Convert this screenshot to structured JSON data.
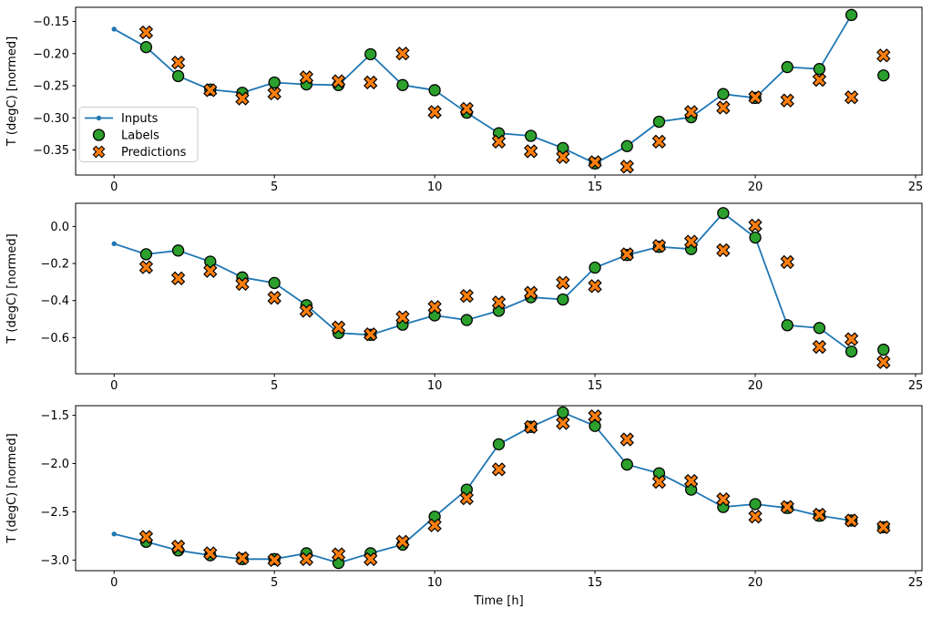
{
  "figure": {
    "background": "#ffffff"
  },
  "colors": {
    "inputs": "#1f77b4",
    "labels": "#2ca02c",
    "predictions": "#ff7f0e",
    "marker_edge": "#000000",
    "axis": "#000000",
    "legend_border": "#cccccc",
    "legend_fill": "#ffffff"
  },
  "legend": {
    "entries": [
      {
        "label": "Inputs",
        "marker": "line-dot"
      },
      {
        "label": "Labels",
        "marker": "circle"
      },
      {
        "label": "Predictions",
        "marker": "x"
      }
    ]
  },
  "chart_data": [
    {
      "type": "line",
      "ylabel": "T (degC) [normed]",
      "xlabel": "",
      "xlim": [
        -1.2,
        25.2
      ],
      "ylim": [
        -0.389,
        -0.128
      ],
      "xticks": [
        0,
        5,
        10,
        15,
        20,
        25
      ],
      "xtick_labels": [
        "0",
        "5",
        "10",
        "15",
        "20",
        "25"
      ],
      "ytick_values": [
        -0.15,
        -0.2,
        -0.25,
        -0.3,
        -0.35
      ],
      "ytick_labels": [
        "−0.15",
        "−0.20",
        "−0.25",
        "−0.30",
        "−0.35"
      ],
      "grid": false,
      "series": [
        {
          "name": "Inputs",
          "kind": "line",
          "x": [
            0,
            1,
            2,
            3,
            4,
            5,
            6,
            7,
            8,
            9,
            10,
            11,
            12,
            13,
            14,
            15,
            16,
            17,
            18,
            19,
            20,
            21,
            22,
            23
          ],
          "y": [
            -0.162,
            -0.19,
            -0.235,
            -0.256,
            -0.261,
            -0.245,
            -0.248,
            -0.249,
            -0.201,
            -0.249,
            -0.257,
            -0.292,
            -0.324,
            -0.328,
            -0.347,
            -0.371,
            -0.344,
            -0.306,
            -0.299,
            -0.263,
            -0.269,
            -0.221,
            -0.224,
            -0.14
          ]
        },
        {
          "name": "Labels",
          "kind": "circle",
          "x": [
            1,
            2,
            3,
            4,
            5,
            6,
            7,
            8,
            9,
            10,
            11,
            12,
            13,
            14,
            15,
            16,
            17,
            18,
            19,
            20,
            21,
            22,
            23,
            24
          ],
          "y": [
            -0.19,
            -0.235,
            -0.256,
            -0.261,
            -0.245,
            -0.248,
            -0.249,
            -0.201,
            -0.249,
            -0.257,
            -0.292,
            -0.324,
            -0.328,
            -0.347,
            -0.371,
            -0.344,
            -0.306,
            -0.299,
            -0.263,
            -0.269,
            -0.221,
            -0.224,
            -0.14,
            -0.234
          ]
        },
        {
          "name": "Predictions",
          "kind": "x",
          "x": [
            1,
            2,
            3,
            4,
            5,
            6,
            7,
            8,
            9,
            10,
            11,
            12,
            13,
            14,
            15,
            16,
            17,
            18,
            19,
            20,
            21,
            22,
            23,
            24
          ],
          "y": [
            -0.167,
            -0.214,
            -0.257,
            -0.27,
            -0.262,
            -0.237,
            -0.243,
            -0.245,
            -0.2,
            -0.291,
            -0.286,
            -0.337,
            -0.352,
            -0.361,
            -0.369,
            -0.376,
            -0.337,
            -0.291,
            -0.284,
            -0.268,
            -0.273,
            -0.241,
            -0.268,
            -0.203
          ]
        }
      ]
    },
    {
      "type": "line",
      "ylabel": "T (degC) [normed]",
      "xlabel": "",
      "xlim": [
        -1.2,
        25.2
      ],
      "ylim": [
        -0.795,
        0.125
      ],
      "xticks": [
        0,
        5,
        10,
        15,
        20,
        25
      ],
      "xtick_labels": [
        "0",
        "5",
        "10",
        "15",
        "20",
        "25"
      ],
      "ytick_values": [
        0.0,
        -0.2,
        -0.4,
        -0.6
      ],
      "ytick_labels": [
        "0.0",
        "−0.2",
        "−0.4",
        "−0.6"
      ],
      "grid": false,
      "series": [
        {
          "name": "Inputs",
          "kind": "line",
          "x": [
            0,
            1,
            2,
            3,
            4,
            5,
            6,
            7,
            8,
            9,
            10,
            11,
            12,
            13,
            14,
            15,
            16,
            17,
            18,
            19,
            20,
            21,
            22,
            23
          ],
          "y": [
            -0.093,
            -0.15,
            -0.13,
            -0.19,
            -0.275,
            -0.305,
            -0.425,
            -0.575,
            -0.585,
            -0.53,
            -0.48,
            -0.505,
            -0.455,
            -0.382,
            -0.394,
            -0.222,
            -0.154,
            -0.11,
            -0.122,
            0.072,
            -0.06,
            -0.533,
            -0.548,
            -0.675
          ]
        },
        {
          "name": "Labels",
          "kind": "circle",
          "x": [
            1,
            2,
            3,
            4,
            5,
            6,
            7,
            8,
            9,
            10,
            11,
            12,
            13,
            14,
            15,
            16,
            17,
            18,
            19,
            20,
            21,
            22,
            23,
            24
          ],
          "y": [
            -0.15,
            -0.13,
            -0.19,
            -0.275,
            -0.305,
            -0.425,
            -0.575,
            -0.585,
            -0.53,
            -0.48,
            -0.505,
            -0.455,
            -0.382,
            -0.394,
            -0.222,
            -0.154,
            -0.11,
            -0.122,
            0.072,
            -0.06,
            -0.533,
            -0.548,
            -0.675,
            -0.665
          ]
        },
        {
          "name": "Predictions",
          "kind": "x",
          "x": [
            1,
            2,
            3,
            4,
            5,
            6,
            7,
            8,
            9,
            10,
            11,
            12,
            13,
            14,
            15,
            16,
            17,
            18,
            19,
            20,
            21,
            22,
            23,
            24
          ],
          "y": [
            -0.22,
            -0.28,
            -0.24,
            -0.31,
            -0.385,
            -0.455,
            -0.545,
            -0.582,
            -0.49,
            -0.435,
            -0.375,
            -0.41,
            -0.358,
            -0.304,
            -0.322,
            -0.15,
            -0.105,
            -0.082,
            -0.128,
            0.005,
            -0.192,
            -0.65,
            -0.608,
            -0.732
          ]
        }
      ]
    },
    {
      "type": "line",
      "ylabel": "T (degC) [normed]",
      "xlabel": "Time [h]",
      "xlim": [
        -1.2,
        25.2
      ],
      "ylim": [
        -3.11,
        -1.4
      ],
      "xticks": [
        0,
        5,
        10,
        15,
        20,
        25
      ],
      "xtick_labels": [
        "0",
        "5",
        "10",
        "15",
        "20",
        "25"
      ],
      "ytick_values": [
        -1.5,
        -2.0,
        -2.5,
        -3.0
      ],
      "ytick_labels": [
        "−1.5",
        "−2.0",
        "−2.5",
        "−3.0"
      ],
      "grid": false,
      "series": [
        {
          "name": "Inputs",
          "kind": "line",
          "x": [
            0,
            1,
            2,
            3,
            4,
            5,
            6,
            7,
            8,
            9,
            10,
            11,
            12,
            13,
            14,
            15,
            16,
            17,
            18,
            19,
            20,
            21,
            22,
            23
          ],
          "y": [
            -2.73,
            -2.81,
            -2.9,
            -2.95,
            -2.99,
            -2.99,
            -2.93,
            -3.03,
            -2.93,
            -2.84,
            -2.55,
            -2.27,
            -1.8,
            -1.62,
            -1.47,
            -1.61,
            -2.01,
            -2.1,
            -2.27,
            -2.45,
            -2.42,
            -2.46,
            -2.54,
            -2.59
          ]
        },
        {
          "name": "Labels",
          "kind": "circle",
          "x": [
            1,
            2,
            3,
            4,
            5,
            6,
            7,
            8,
            9,
            10,
            11,
            12,
            13,
            14,
            15,
            16,
            17,
            18,
            19,
            20,
            21,
            22,
            23,
            24
          ],
          "y": [
            -2.81,
            -2.9,
            -2.95,
            -2.99,
            -2.99,
            -2.93,
            -3.03,
            -2.93,
            -2.84,
            -2.55,
            -2.27,
            -1.8,
            -1.62,
            -1.47,
            -1.61,
            -2.01,
            -2.1,
            -2.27,
            -2.45,
            -2.42,
            -2.46,
            -2.54,
            -2.59,
            -2.66
          ]
        },
        {
          "name": "Predictions",
          "kind": "x",
          "x": [
            1,
            2,
            3,
            4,
            5,
            6,
            7,
            8,
            9,
            10,
            11,
            12,
            13,
            14,
            15,
            16,
            17,
            18,
            19,
            20,
            21,
            22,
            23,
            24
          ],
          "y": [
            -2.76,
            -2.86,
            -2.93,
            -2.98,
            -3.0,
            -2.99,
            -2.94,
            -2.99,
            -2.81,
            -2.64,
            -2.36,
            -2.06,
            -1.62,
            -1.58,
            -1.51,
            -1.75,
            -2.19,
            -2.18,
            -2.37,
            -2.55,
            -2.45,
            -2.53,
            -2.59,
            -2.66
          ]
        }
      ]
    }
  ]
}
